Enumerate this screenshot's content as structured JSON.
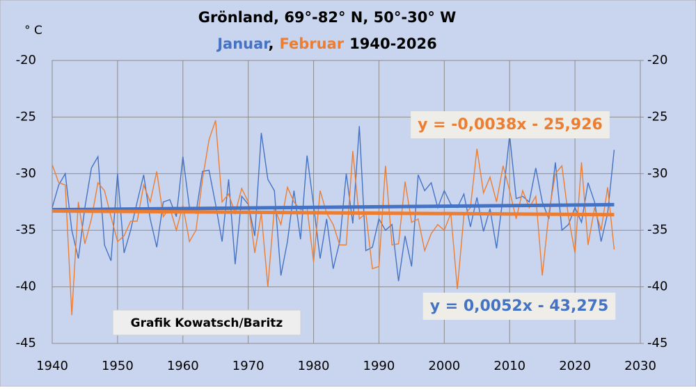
{
  "chart_data": {
    "type": "line",
    "title": "Grönland,  69°-82° N, 50°-30° W",
    "subtitle": {
      "separator": ",",
      "period": "1940-2026"
    },
    "ylabel": "° C",
    "annotation": "Grafik Kowatsch/Baritz",
    "x": [
      1940,
      1941,
      1942,
      1943,
      1944,
      1945,
      1946,
      1947,
      1948,
      1949,
      1950,
      1951,
      1952,
      1953,
      1954,
      1955,
      1956,
      1957,
      1958,
      1959,
      1960,
      1961,
      1962,
      1963,
      1964,
      1965,
      1966,
      1967,
      1968,
      1969,
      1970,
      1971,
      1972,
      1973,
      1974,
      1975,
      1976,
      1977,
      1978,
      1979,
      1980,
      1981,
      1982,
      1983,
      1984,
      1985,
      1986,
      1987,
      1988,
      1989,
      1990,
      1991,
      1992,
      1993,
      1994,
      1995,
      1996,
      1997,
      1998,
      1999,
      2000,
      2001,
      2002,
      2003,
      2004,
      2005,
      2006,
      2007,
      2008,
      2009,
      2010,
      2011,
      2012,
      2013,
      2014,
      2015,
      2016,
      2017,
      2018,
      2019,
      2020,
      2021,
      2022,
      2023,
      2024,
      2025,
      2026
    ],
    "series": [
      {
        "name": "Januar",
        "color": "#4472c4",
        "values": [
          -33,
          -31,
          -30,
          -35,
          -37.5,
          -33,
          -29.5,
          -28.5,
          -36.3,
          -37.7,
          -30,
          -37,
          -35,
          -32.5,
          -30.1,
          -34,
          -36.5,
          -32.5,
          -32.3,
          -33.8,
          -28.5,
          -33,
          -33.5,
          -29.8,
          -29.7,
          -32.7,
          -36,
          -30.5,
          -38,
          -32,
          -32.7,
          -35.5,
          -26.4,
          -30.5,
          -31.5,
          -39,
          -36,
          -31.5,
          -35.8,
          -28.4,
          -32.8,
          -37.5,
          -34,
          -38.4,
          -36,
          -30,
          -34.4,
          -25.8,
          -36.8,
          -36.5,
          -34,
          -35,
          -34.5,
          -39.5,
          -35.5,
          -38.2,
          -30.1,
          -31.5,
          -30.8,
          -33,
          -31.5,
          -32.7,
          -33,
          -31.8,
          -34.7,
          -32.1,
          -35.1,
          -33.1,
          -36.6,
          -32,
          -26.6,
          -32.2,
          -32,
          -32.5,
          -29.5,
          -32.5,
          -34,
          -29,
          -35,
          -34.5,
          -33,
          -34.3,
          -30.8,
          -32.5,
          -36,
          -33.5,
          -27.9
        ]
      },
      {
        "name": "Februar",
        "color": "#ed7d31",
        "values": [
          -29.2,
          -30.8,
          -31,
          -42.5,
          -32.5,
          -36.2,
          -34,
          -30.8,
          -31.5,
          -33.8,
          -36,
          -35.5,
          -34.2,
          -34.2,
          -31,
          -32.5,
          -29.8,
          -33.8,
          -33,
          -35,
          -32.8,
          -36,
          -35,
          -30.5,
          -27,
          -25.3,
          -32.5,
          -31.8,
          -33.5,
          -31.3,
          -32.5,
          -37,
          -33.5,
          -40,
          -33,
          -34.5,
          -31.2,
          -32.5,
          -33.2,
          -33,
          -37.8,
          -31.5,
          -33.5,
          -34.5,
          -36.3,
          -36.3,
          -28,
          -34,
          -33.5,
          -38.4,
          -38.2,
          -29.3,
          -36.3,
          -36.2,
          -30.7,
          -34.3,
          -34,
          -36.8,
          -35.3,
          -34.5,
          -35,
          -33.5,
          -40.2,
          -33.7,
          -33,
          -27.8,
          -31.7,
          -30.3,
          -32.5,
          -29.3,
          -31.5,
          -34,
          -31.5,
          -33,
          -32,
          -39,
          -33.5,
          -30,
          -29.3,
          -33.8,
          -37,
          -29,
          -36.3,
          -33,
          -35,
          -31.2,
          -36.7
        ]
      }
    ],
    "trendlines": [
      {
        "label": "y = 0,0052x - 43,275",
        "slope": 0.0052,
        "intercept": -43.275,
        "color": "#4472c4"
      },
      {
        "label": "y = -0,0038x - 25,926",
        "slope": -0.0038,
        "intercept": -25.926,
        "color": "#ed7d31"
      }
    ],
    "xlim": [
      1940,
      2030
    ],
    "xticks": [
      1940,
      1950,
      1960,
      1970,
      1980,
      1990,
      2000,
      2010,
      2020,
      2030
    ],
    "ylim": [
      -45,
      -20
    ],
    "yticks": [
      -45,
      -40,
      -35,
      -30,
      -25,
      -20
    ],
    "y2lim": [
      -45,
      -20
    ],
    "y2ticks": [
      -45,
      -40,
      -35,
      -30,
      -25,
      -20
    ],
    "grid": true
  }
}
